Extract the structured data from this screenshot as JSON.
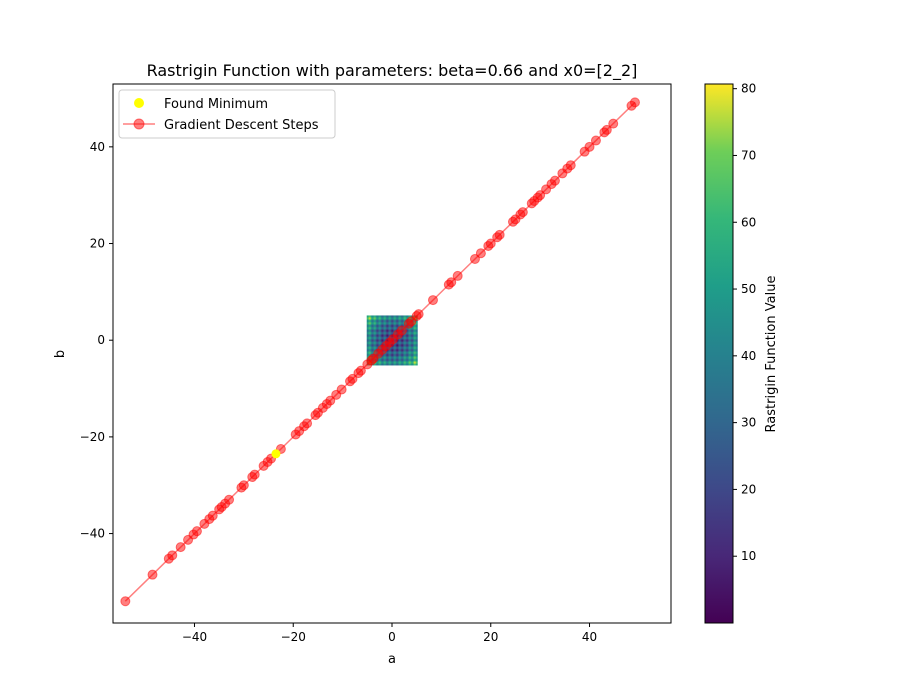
{
  "chart_data": {
    "type": "scatter",
    "title": "Rastrigin Function with parameters: beta=0.66 and x0=[2_2]",
    "xlabel": "a",
    "ylabel": "b",
    "xlim": [
      -56.5,
      56.5
    ],
    "ylim": [
      -58.5,
      53.0
    ],
    "xticks": [
      -40,
      -20,
      0,
      20,
      40
    ],
    "yticks": [
      -40,
      -20,
      0,
      20,
      40
    ],
    "xtick_labels": [
      "−40",
      "−20",
      "0",
      "20",
      "40"
    ],
    "ytick_labels": [
      "−40",
      "−20",
      "0",
      "20",
      "40"
    ],
    "grid": false,
    "legend": {
      "placement": "upper-left",
      "entries": [
        "Found Minimum",
        "Gradient Descent Steps"
      ]
    },
    "heatmap": {
      "function": "Rastrigin",
      "x_range": [
        -5.12,
        5.12
      ],
      "y_range": [
        -5.12,
        5.12
      ],
      "colormap": "viridis",
      "colorbar_label": "Rastrigin Function Value",
      "colorbar_range": [
        0,
        80.7
      ],
      "colorbar_ticks": [
        10,
        20,
        30,
        40,
        50,
        60,
        70,
        80
      ],
      "colorbar_tick_labels": [
        "10",
        "20",
        "30",
        "40",
        "50",
        "60",
        "70",
        "80"
      ]
    },
    "series": [
      {
        "name": "Gradient Descent Steps",
        "kind": "line+markers",
        "color": "#ff0000",
        "points": [
          [
            -54.0,
            -54.0
          ],
          [
            -48.5,
            -48.5
          ],
          [
            -45.2,
            -45.2
          ],
          [
            -44.5,
            -44.5
          ],
          [
            -42.8,
            -42.8
          ],
          [
            -41.3,
            -41.3
          ],
          [
            -40.2,
            -40.2
          ],
          [
            -39.5,
            -39.5
          ],
          [
            -38.0,
            -38.0
          ],
          [
            -37.0,
            -37.0
          ],
          [
            -36.3,
            -36.3
          ],
          [
            -35.0,
            -35.0
          ],
          [
            -34.5,
            -34.5
          ],
          [
            -33.8,
            -33.8
          ],
          [
            -33.0,
            -33.0
          ],
          [
            -30.5,
            -30.5
          ],
          [
            -30.0,
            -30.0
          ],
          [
            -28.3,
            -28.3
          ],
          [
            -27.8,
            -27.8
          ],
          [
            -26.0,
            -26.0
          ],
          [
            -25.2,
            -25.2
          ],
          [
            -24.5,
            -24.5
          ],
          [
            -22.5,
            -22.5
          ],
          [
            -19.5,
            -19.5
          ],
          [
            -18.8,
            -18.8
          ],
          [
            -17.8,
            -17.8
          ],
          [
            -17.2,
            -17.2
          ],
          [
            -15.5,
            -15.5
          ],
          [
            -15.0,
            -15.0
          ],
          [
            -14.0,
            -14.0
          ],
          [
            -13.2,
            -13.2
          ],
          [
            -12.5,
            -12.5
          ],
          [
            -11.3,
            -11.3
          ],
          [
            -10.2,
            -10.2
          ],
          [
            -8.5,
            -8.5
          ],
          [
            -8.0,
            -8.0
          ],
          [
            -6.8,
            -6.8
          ],
          [
            -6.3,
            -6.3
          ],
          [
            -5.0,
            -5.0
          ],
          [
            -4.2,
            -4.2
          ],
          [
            -3.8,
            -3.8
          ],
          [
            -2.8,
            -2.8
          ],
          [
            -2.0,
            -2.0
          ],
          [
            -1.2,
            -1.2
          ],
          [
            -0.5,
            -0.5
          ],
          [
            0.2,
            0.2
          ],
          [
            1.2,
            1.2
          ],
          [
            2.0,
            2.0
          ],
          [
            3.4,
            3.4
          ],
          [
            3.9,
            3.9
          ],
          [
            5.0,
            5.0
          ],
          [
            5.4,
            5.4
          ],
          [
            8.3,
            8.3
          ],
          [
            11.5,
            11.5
          ],
          [
            12.0,
            12.0
          ],
          [
            13.3,
            13.3
          ],
          [
            16.8,
            16.8
          ],
          [
            18.0,
            18.0
          ],
          [
            19.5,
            19.5
          ],
          [
            20.0,
            20.0
          ],
          [
            21.3,
            21.3
          ],
          [
            21.8,
            21.8
          ],
          [
            24.5,
            24.5
          ],
          [
            25.0,
            25.0
          ],
          [
            26.0,
            26.0
          ],
          [
            26.5,
            26.5
          ],
          [
            28.3,
            28.3
          ],
          [
            28.8,
            28.8
          ],
          [
            29.5,
            29.5
          ],
          [
            30.0,
            30.0
          ],
          [
            31.2,
            31.2
          ],
          [
            32.3,
            32.3
          ],
          [
            33.0,
            33.0
          ],
          [
            34.5,
            34.5
          ],
          [
            35.5,
            35.5
          ],
          [
            36.2,
            36.2
          ],
          [
            39.0,
            39.0
          ],
          [
            40.0,
            40.0
          ],
          [
            41.3,
            41.3
          ],
          [
            43.0,
            43.0
          ],
          [
            43.5,
            43.5
          ],
          [
            44.8,
            44.8
          ],
          [
            48.5,
            48.5
          ],
          [
            49.2,
            49.2
          ]
        ]
      },
      {
        "name": "Found Minimum",
        "kind": "scatter",
        "color": "#ffff00",
        "points": [
          [
            -23.5,
            -23.5
          ]
        ]
      }
    ]
  }
}
